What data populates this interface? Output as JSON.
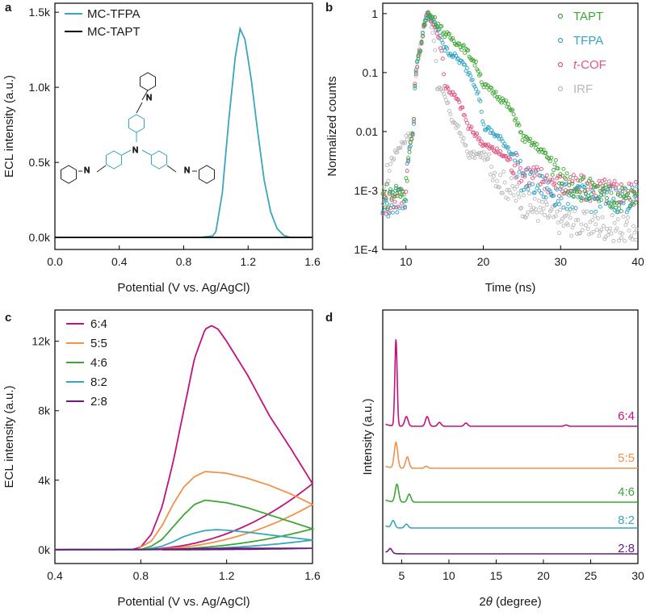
{
  "chart_data": [
    {
      "panel": "a",
      "type": "line",
      "xlabel": "Potential (V vs. Ag/AgCl)",
      "ylabel": "ECL intensity (a.u.)",
      "xlim": [
        0.0,
        1.6
      ],
      "ylim": [
        -80,
        1560
      ],
      "xticks": [
        "0.0",
        "0.4",
        "0.8",
        "1.2",
        "1.6"
      ],
      "yticks": [
        "0.0k",
        "0.5k",
        "1.0k",
        "1.5k"
      ],
      "legend_position": "top-left",
      "series": [
        {
          "name": "MC-TFPA",
          "color": "#3aa6b9",
          "x": [
            0.0,
            0.9,
            0.98,
            1.0,
            1.04,
            1.08,
            1.12,
            1.15,
            1.18,
            1.22,
            1.26,
            1.3,
            1.34,
            1.38,
            1.42,
            1.46,
            1.6
          ],
          "y": [
            0,
            0,
            10,
            40,
            300,
            780,
            1200,
            1390,
            1320,
            1050,
            700,
            380,
            170,
            60,
            15,
            0,
            0
          ]
        },
        {
          "name": "MC-TAPT",
          "color": "#000000",
          "x": [
            0.0,
            1.6
          ],
          "y": [
            0,
            0
          ]
        }
      ],
      "inset": "chemical structure (TFPA-based imine)"
    },
    {
      "panel": "b",
      "type": "scatter",
      "xlabel": "Time (ns)",
      "ylabel": "Normalized counts",
      "xlim": [
        7,
        40
      ],
      "ylim": [
        0.0001,
        1.5
      ],
      "log_y": true,
      "xticks": [
        "10",
        "20",
        "30",
        "40"
      ],
      "yticks": [
        "1E-4",
        "1E-3",
        "0.01",
        "0.1",
        "1"
      ],
      "legend_position": "top-right",
      "series": [
        {
          "name": "TAPT",
          "color": "#3fa535",
          "x": [
            7,
            10,
            11,
            12,
            12.8,
            15,
            20,
            25,
            30,
            35,
            40
          ],
          "y": [
            0.0008,
            0.001,
            0.01,
            0.3,
            1.0,
            0.45,
            0.06,
            0.008,
            0.0015,
            0.0008,
            0.0007
          ]
        },
        {
          "name": "TFPA",
          "color": "#33a3c4",
          "x": [
            7,
            10,
            11,
            12,
            12.8,
            15,
            20,
            25,
            30,
            35,
            40
          ],
          "y": [
            0.0005,
            0.0008,
            0.01,
            0.3,
            1.0,
            0.25,
            0.012,
            0.0015,
            0.0008,
            0.0007,
            0.0007
          ]
        },
        {
          "name": "t-COF",
          "color": "#e05580",
          "x": [
            7,
            10,
            11,
            12,
            12.8,
            15,
            18,
            20,
            25,
            30,
            35,
            40
          ],
          "y": [
            0.0006,
            0.0008,
            0.01,
            0.3,
            1.0,
            0.06,
            0.012,
            0.006,
            0.002,
            0.0012,
            0.001,
            0.0009
          ]
        },
        {
          "name": "IRF",
          "color": "#b8b8b8",
          "x": [
            7,
            11,
            12,
            12.8,
            14,
            16,
            18,
            20,
            22,
            25,
            30,
            40
          ],
          "y": [
            0.0004,
            0.01,
            0.3,
            1.0,
            0.06,
            0.015,
            0.004,
            0.004,
            0.0015,
            0.0006,
            0.0003,
            0.0002
          ]
        }
      ]
    },
    {
      "panel": "c",
      "type": "line",
      "xlabel": "Potential (V vs. Ag/AgCl)",
      "ylabel": "ECL intensity (a.u.)",
      "xlim": [
        0.4,
        1.6
      ],
      "ylim": [
        -800,
        13800
      ],
      "xticks": [
        "0.4",
        "0.8",
        "1.2",
        "1.6"
      ],
      "yticks": [
        "0k",
        "4k",
        "8k",
        "12k"
      ],
      "legend_position": "top-left",
      "series": [
        {
          "name": "6:4",
          "color": "#c2127e",
          "forward_peak": 12900,
          "x": [
            0.4,
            0.76,
            0.8,
            0.85,
            0.9,
            0.95,
            1.0,
            1.05,
            1.1,
            1.13,
            1.16,
            1.2,
            1.3,
            1.4,
            1.5,
            1.6
          ],
          "y": [
            0,
            0,
            150,
            900,
            2500,
            5000,
            8000,
            11000,
            12700,
            12900,
            12700,
            12000,
            10000,
            7700,
            5800,
            3800
          ]
        },
        {
          "name": "5:5",
          "color": "#f0924a",
          "forward_peak": 4500,
          "x": [
            0.4,
            0.78,
            0.85,
            0.9,
            0.95,
            1.0,
            1.05,
            1.1,
            1.2,
            1.3,
            1.4,
            1.5,
            1.6
          ],
          "y": [
            0,
            0,
            500,
            1400,
            2600,
            3600,
            4200,
            4500,
            4400,
            4100,
            3700,
            3200,
            2600
          ]
        },
        {
          "name": "4:6",
          "color": "#3fa535",
          "forward_peak": 2850,
          "x": [
            0.4,
            0.8,
            0.85,
            0.9,
            0.95,
            1.0,
            1.05,
            1.1,
            1.2,
            1.3,
            1.4,
            1.5,
            1.6
          ],
          "y": [
            0,
            0,
            200,
            600,
            1300,
            2000,
            2600,
            2850,
            2700,
            2400,
            2000,
            1600,
            1200
          ]
        },
        {
          "name": "8:2",
          "color": "#3aa6b9",
          "forward_peak": 1150,
          "x": [
            0.4,
            0.82,
            0.9,
            0.95,
            1.0,
            1.05,
            1.1,
            1.15,
            1.2,
            1.3,
            1.4,
            1.5,
            1.6
          ],
          "y": [
            0,
            0,
            200,
            450,
            750,
            950,
            1100,
            1150,
            1120,
            1000,
            850,
            700,
            550
          ]
        },
        {
          "name": "2:8",
          "color": "#6b1a7e",
          "forward_peak": 80,
          "x": [
            0.4,
            0.9,
            1.1,
            1.3,
            1.6
          ],
          "y": [
            0,
            20,
            60,
            80,
            80
          ]
        }
      ]
    },
    {
      "panel": "d",
      "type": "line",
      "xlabel": "2θ (degree)",
      "ylabel": "Intensity (a.u.)",
      "xlim": [
        3,
        30
      ],
      "yticks_shown": false,
      "xticks": [
        "5",
        "10",
        "15",
        "20",
        "25",
        "30"
      ],
      "stacked_offsets": true,
      "series": [
        {
          "name": "6:4",
          "color": "#c2127e",
          "peaks": [
            {
              "x": 4.4,
              "h": 270
            },
            {
              "x": 5.5,
              "h": 30
            },
            {
              "x": 7.7,
              "h": 30
            },
            {
              "x": 9.0,
              "h": 12
            },
            {
              "x": 11.8,
              "h": 10
            },
            {
              "x": 22.4,
              "h": 4
            }
          ]
        },
        {
          "name": "5:5",
          "color": "#f0924a",
          "peaks": [
            {
              "x": 4.4,
              "h": 80
            },
            {
              "x": 5.6,
              "h": 35
            },
            {
              "x": 7.6,
              "h": 6
            }
          ]
        },
        {
          "name": "4:6",
          "color": "#3fa535",
          "peaks": [
            {
              "x": 4.5,
              "h": 55
            },
            {
              "x": 5.8,
              "h": 25
            }
          ]
        },
        {
          "name": "8:2",
          "color": "#3aa6b9",
          "peaks": [
            {
              "x": 4.1,
              "h": 22
            },
            {
              "x": 5.5,
              "h": 12
            }
          ]
        },
        {
          "name": "2:8",
          "color": "#6b1a7e",
          "peaks": [
            {
              "x": 3.8,
              "h": 14
            }
          ]
        }
      ]
    }
  ]
}
